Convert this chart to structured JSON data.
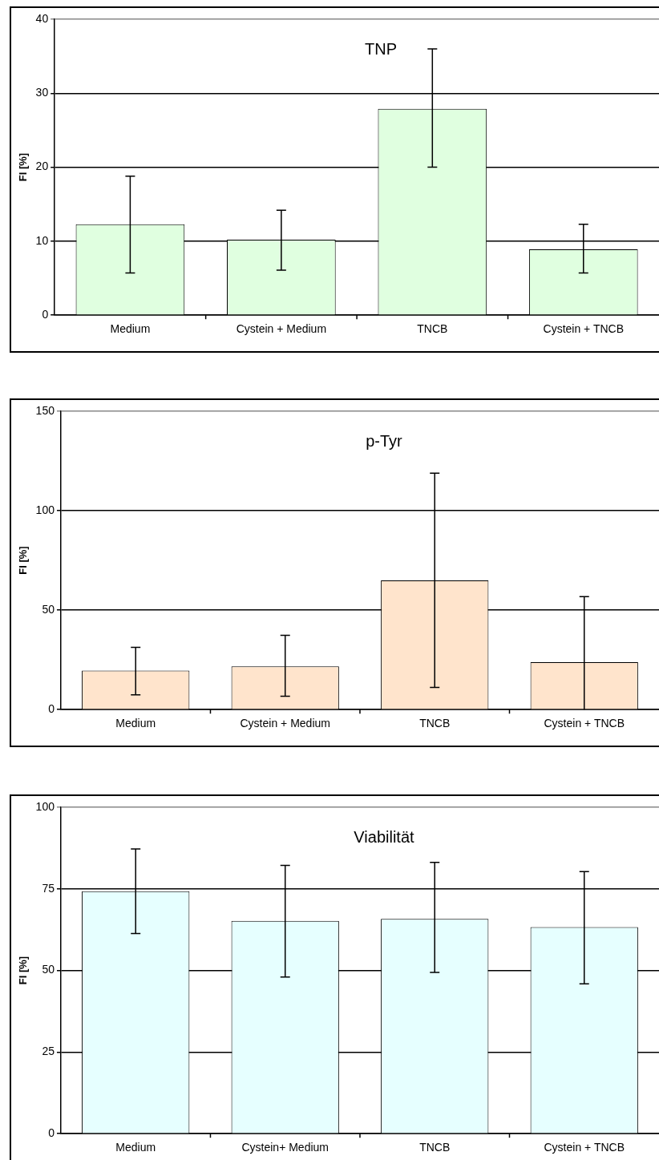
{
  "chart_data": [
    {
      "type": "bar",
      "title": "TNP",
      "ylabel": "FI [%]",
      "categories": [
        "Medium",
        "Cystein + Medium",
        "TNCB",
        "Cystein + TNCB"
      ],
      "values": [
        12.3,
        10.2,
        27.9,
        8.9
      ],
      "errors": [
        [
          5.7,
          18.8
        ],
        [
          6.1,
          14.2
        ],
        [
          20,
          36
        ],
        [
          5.7,
          12.3
        ]
      ],
      "color": "#e0ffe0",
      "ylim": [
        0,
        40
      ],
      "yticks": [
        0,
        10,
        20,
        30,
        40
      ],
      "grid": "y"
    },
    {
      "type": "bar",
      "title": "p-Tyr",
      "ylabel": "FI [%]",
      "categories": [
        "Medium",
        "Cystein + Medium",
        "TNCB",
        "Cystein + TNCB"
      ],
      "values": [
        19.6,
        21.7,
        65,
        23.9
      ],
      "errors": [
        [
          7.4,
          31.3
        ],
        [
          6.7,
          37.4
        ],
        [
          11.2,
          118.9
        ],
        [
          0,
          56.8
        ]
      ],
      "color": "#ffe4cc",
      "ylim": [
        0,
        150
      ],
      "yticks": [
        0,
        50,
        100,
        150
      ],
      "grid": "y"
    },
    {
      "type": "bar",
      "title": "Viabilität",
      "ylabel": "FI [%]",
      "categories": [
        "Medium",
        "Cystein+ Medium",
        "TNCB",
        "Cystein + TNCB"
      ],
      "values": [
        74.3,
        65.2,
        65.8,
        63.3
      ],
      "errors": [
        [
          61.3,
          87.2
        ],
        [
          48,
          82.2
        ],
        [
          49.4,
          83.1
        ],
        [
          45.9,
          80.3
        ]
      ],
      "color": "#e6ffff",
      "ylim": [
        0,
        100
      ],
      "yticks": [
        0,
        25,
        50,
        75,
        100
      ],
      "grid": "y"
    }
  ]
}
